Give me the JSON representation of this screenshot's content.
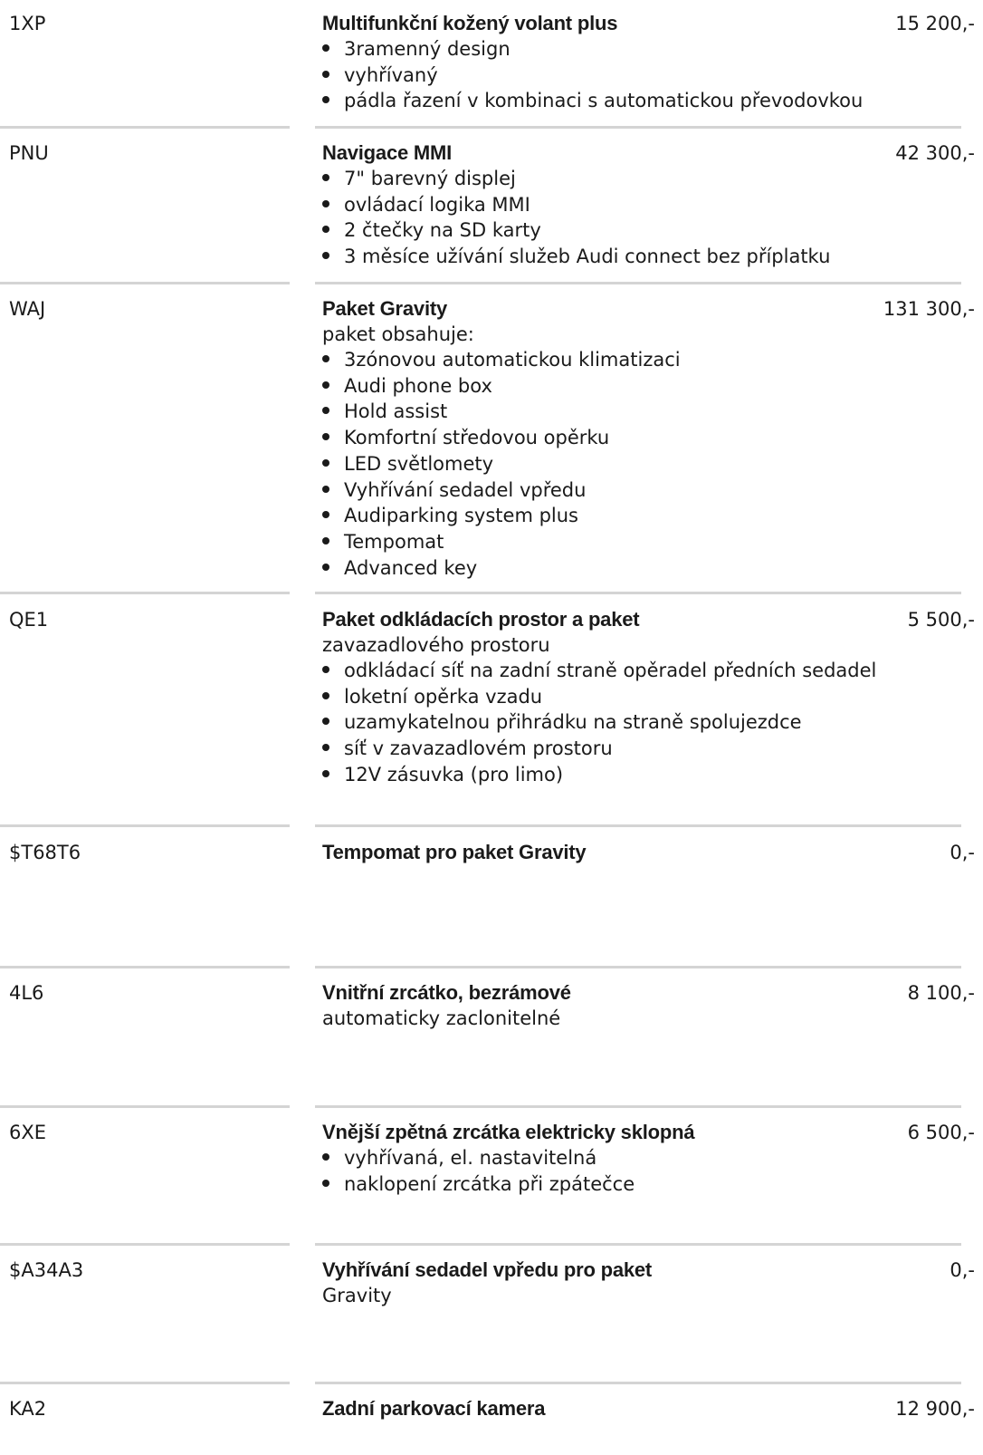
{
  "items": [
    {
      "code": "1XP",
      "title": "Multifunkční kožený volant plus",
      "price": "15 200,-",
      "bullets": [
        "3ramenný design",
        "vyhřívaný",
        "pádla řazení v kombinaci s automatickou převodovkou"
      ]
    },
    {
      "code": "PNU",
      "title": "Navigace MMI",
      "price": "42 300,-",
      "bullets": [
        "7\" barevný displej",
        "ovládací logika MMI",
        "2 čtečky na SD karty",
        "3 měsíce užívání služeb Audi connect bez příplatku"
      ]
    },
    {
      "code": "WAJ",
      "title": "Paket Gravity",
      "price": "131 300,-",
      "subtitle": "paket obsahuje:",
      "bullets": [
        "3zónovou automatickou klimatizaci",
        "Audi phone box",
        "Hold assist",
        "Komfortní středovou opěrku",
        "LED světlomety",
        "Vyhřívání sedadel vpředu",
        "Audiparking system plus",
        "Tempomat",
        "Advanced key"
      ]
    },
    {
      "code": "QE1",
      "title": "Paket odkládacích prostor a paket",
      "price": "5 500,-",
      "subtitle": "zavazadlového prostoru",
      "bullets": [
        "odkládací síť na zadní straně opěradel předních sedadel",
        "loketní opěrka vzadu",
        "uzamykatelnou přihrádku na straně spolujezdce",
        "síť v zavazadlovém prostoru",
        "12V zásuvka (pro limo)"
      ]
    },
    {
      "code": "$T68T6",
      "title": "Tempomat pro paket Gravity",
      "price": "0,-"
    },
    {
      "code": "4L6",
      "title": "Vnitřní zrcátko, bezrámové",
      "price": "8 100,-",
      "subtitle": "automaticky zaclonitelné"
    },
    {
      "code": "6XE",
      "title": "Vnější zpětná zrcátka elektricky sklopná",
      "price": "6 500,-",
      "bullets": [
        "vyhřívaná, el. nastavitelná",
        "naklopení zrcátka při zpátečce"
      ]
    },
    {
      "code": "$A34A3",
      "title": "Vyhřívání sedadel vpředu pro paket",
      "price": "0,-",
      "subtitle": "Gravity"
    },
    {
      "code": "KA2",
      "title": "Zadní parkovací kamera",
      "price": "12 900,-"
    }
  ]
}
